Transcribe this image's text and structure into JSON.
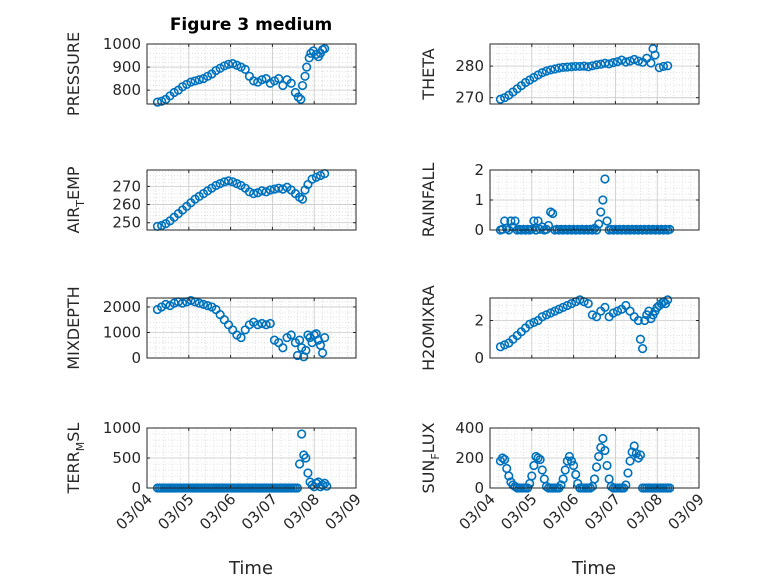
{
  "figure": {
    "title": "Figure 3 medium",
    "xlabel": "Time",
    "marker_color": "#0072bd",
    "x_ticks": [
      "03/04",
      "03/05",
      "03/06",
      "03/07",
      "03/08",
      "03/09"
    ]
  },
  "chart_data": [
    {
      "type": "scatter",
      "ylabel": "PRESSURE",
      "ylim": [
        740,
        1000
      ],
      "yticks": [
        800,
        900,
        1000
      ],
      "xlim": [
        0,
        5
      ],
      "grid": true,
      "series": [
        {
          "x": [
            0.25,
            0.35,
            0.45,
            0.55,
            0.65,
            0.75,
            0.85,
            0.95,
            1.05,
            1.15,
            1.25,
            1.35,
            1.45,
            1.55,
            1.65,
            1.75,
            1.85,
            1.95,
            2.05,
            2.15,
            2.25,
            2.35,
            2.45,
            2.55,
            2.65,
            2.75,
            2.85,
            2.95,
            3.05,
            3.15,
            3.25,
            3.35,
            3.45,
            3.55,
            3.62,
            3.68,
            3.72,
            3.78,
            3.82,
            3.88,
            3.92,
            3.98,
            4.05,
            4.1,
            4.15,
            4.2,
            4.25
          ],
          "y": [
            748,
            752,
            760,
            775,
            790,
            800,
            815,
            825,
            835,
            840,
            845,
            850,
            860,
            870,
            885,
            895,
            905,
            912,
            915,
            908,
            900,
            890,
            860,
            840,
            835,
            845,
            850,
            830,
            840,
            850,
            820,
            845,
            830,
            790,
            770,
            760,
            820,
            860,
            900,
            940,
            960,
            970,
            955,
            945,
            960,
            975,
            980
          ]
        }
      ]
    },
    {
      "type": "scatter",
      "ylabel": "THETA",
      "ylim": [
        268,
        287
      ],
      "yticks": [
        270,
        280
      ],
      "xlim": [
        0,
        5
      ],
      "grid": true,
      "series": [
        {
          "x": [
            0.25,
            0.35,
            0.45,
            0.55,
            0.65,
            0.75,
            0.85,
            0.95,
            1.05,
            1.15,
            1.25,
            1.35,
            1.45,
            1.55,
            1.65,
            1.75,
            1.85,
            1.95,
            2.05,
            2.15,
            2.25,
            2.35,
            2.45,
            2.55,
            2.65,
            2.75,
            2.85,
            2.95,
            3.05,
            3.15,
            3.25,
            3.35,
            3.45,
            3.55,
            3.65,
            3.75,
            3.85,
            3.9,
            3.95,
            4.05,
            4.15,
            4.25
          ],
          "y": [
            269.5,
            270,
            270.8,
            271.8,
            272.8,
            273.8,
            274.8,
            275.6,
            276.4,
            277.2,
            277.9,
            278.4,
            278.8,
            279.1,
            279.4,
            279.6,
            279.7,
            279.8,
            279.9,
            279.9,
            280,
            279.8,
            280.1,
            280.4,
            280.6,
            280.9,
            280.7,
            281.1,
            281.4,
            281.9,
            281.3,
            281.6,
            282.1,
            281.6,
            281.2,
            282.5,
            281,
            285.5,
            283.5,
            279.5,
            279.9,
            280.1
          ]
        }
      ]
    },
    {
      "type": "scatter",
      "ylabel": "AIR_TEMP",
      "ylim": [
        246,
        279
      ],
      "yticks": [
        250,
        260,
        270
      ],
      "xlim": [
        0,
        5
      ],
      "grid": true,
      "series": [
        {
          "x": [
            0.25,
            0.35,
            0.45,
            0.55,
            0.65,
            0.75,
            0.85,
            0.95,
            1.05,
            1.15,
            1.25,
            1.35,
            1.45,
            1.55,
            1.65,
            1.75,
            1.85,
            1.95,
            2.05,
            2.15,
            2.25,
            2.35,
            2.45,
            2.55,
            2.65,
            2.75,
            2.85,
            2.95,
            3.05,
            3.15,
            3.25,
            3.35,
            3.45,
            3.55,
            3.65,
            3.72,
            3.78,
            3.85,
            3.95,
            4.05,
            4.15,
            4.25
          ],
          "y": [
            248,
            248.5,
            249.5,
            251,
            253,
            255,
            257,
            259,
            261,
            263,
            264.5,
            266,
            267.5,
            269,
            270.5,
            271.5,
            272.5,
            273,
            272.5,
            271.5,
            270.5,
            269,
            267,
            266,
            266.5,
            267.5,
            267,
            268,
            268.5,
            269,
            268.5,
            269.5,
            268,
            266,
            264,
            263,
            268,
            271,
            274,
            275,
            276,
            277
          ]
        }
      ]
    },
    {
      "type": "scatter",
      "ylabel": "RAINFALL",
      "ylim": [
        0,
        2
      ],
      "yticks": [
        0,
        1,
        2
      ],
      "xlim": [
        0,
        5
      ],
      "grid": true,
      "series": [
        {
          "x": [
            0.25,
            0.3,
            0.35,
            0.4,
            0.45,
            0.5,
            0.55,
            0.6,
            0.65,
            0.7,
            0.75,
            0.8,
            0.85,
            0.9,
            0.95,
            1.0,
            1.05,
            1.1,
            1.15,
            1.2,
            1.25,
            1.3,
            1.35,
            1.4,
            1.45,
            1.5,
            1.55,
            1.6,
            1.65,
            1.7,
            1.75,
            1.8,
            1.85,
            1.9,
            1.95,
            2.0,
            2.05,
            2.1,
            2.15,
            2.2,
            2.25,
            2.3,
            2.35,
            2.4,
            2.45,
            2.5,
            2.55,
            2.6,
            2.65,
            2.7,
            2.75,
            2.8,
            2.85,
            2.9,
            2.95,
            3.0,
            3.05,
            3.1,
            3.15,
            3.2,
            3.25,
            3.3,
            3.35,
            3.4,
            3.45,
            3.5,
            3.55,
            3.6,
            3.65,
            3.7,
            3.75,
            3.8,
            3.85,
            3.9,
            3.95,
            4.0,
            4.05,
            4.1,
            4.15,
            4.2,
            4.25,
            4.3
          ],
          "y": [
            0,
            0.02,
            0.3,
            0.05,
            0,
            0.3,
            0.1,
            0.3,
            0,
            0.02,
            0,
            0.02,
            0,
            0.02,
            0,
            0.02,
            0.3,
            0,
            0.3,
            0.02,
            0.1,
            0,
            0.02,
            0.15,
            0.6,
            0.55,
            0,
            0.02,
            0,
            0.02,
            0,
            0.02,
            0,
            0.02,
            0,
            0.02,
            0,
            0.02,
            0,
            0.02,
            0,
            0.02,
            0,
            0.02,
            0,
            0.05,
            0,
            0.2,
            0.6,
            1.0,
            1.7,
            0.3,
            0,
            0.02,
            0,
            0.02,
            0,
            0.02,
            0,
            0.02,
            0,
            0.02,
            0,
            0.02,
            0,
            0.02,
            0,
            0.02,
            0,
            0.02,
            0,
            0.02,
            0,
            0.02,
            0,
            0.02,
            0,
            0.02,
            0,
            0.02,
            0,
            0.02
          ]
        }
      ]
    },
    {
      "type": "scatter",
      "ylabel": "MIXDEPTH",
      "ylim": [
        0,
        2350
      ],
      "yticks": [
        0,
        1000,
        2000
      ],
      "xlim": [
        0,
        5
      ],
      "grid": true,
      "series": [
        {
          "x": [
            0.25,
            0.35,
            0.45,
            0.55,
            0.65,
            0.75,
            0.85,
            0.95,
            1.05,
            1.15,
            1.25,
            1.35,
            1.45,
            1.55,
            1.65,
            1.75,
            1.85,
            1.95,
            2.05,
            2.15,
            2.25,
            2.35,
            2.45,
            2.55,
            2.65,
            2.75,
            2.85,
            2.95,
            3.05,
            3.15,
            3.25,
            3.35,
            3.45,
            3.55,
            3.6,
            3.65,
            3.7,
            3.75,
            3.8,
            3.85,
            3.9,
            3.95,
            4.0,
            4.05,
            4.1,
            4.15,
            4.2,
            4.25
          ],
          "y": [
            1900,
            2000,
            2100,
            2050,
            2150,
            2200,
            2150,
            2200,
            2250,
            2200,
            2150,
            2100,
            2050,
            2000,
            1900,
            1700,
            1500,
            1300,
            1100,
            900,
            800,
            1100,
            1300,
            1400,
            1300,
            1350,
            1300,
            1350,
            700,
            600,
            400,
            800,
            900,
            600,
            100,
            700,
            400,
            50,
            300,
            900,
            800,
            600,
            900,
            950,
            700,
            500,
            200,
            800
          ]
        }
      ]
    },
    {
      "type": "scatter",
      "ylabel": "H2OMIXRA",
      "ylim": [
        0,
        3.2
      ],
      "yticks": [
        0,
        2
      ],
      "xlim": [
        0,
        5
      ],
      "grid": true,
      "series": [
        {
          "x": [
            0.25,
            0.35,
            0.45,
            0.55,
            0.65,
            0.75,
            0.85,
            0.95,
            1.05,
            1.15,
            1.25,
            1.35,
            1.45,
            1.55,
            1.65,
            1.75,
            1.85,
            1.95,
            2.05,
            2.15,
            2.25,
            2.35,
            2.45,
            2.55,
            2.65,
            2.75,
            2.85,
            2.95,
            3.05,
            3.15,
            3.25,
            3.35,
            3.45,
            3.55,
            3.6,
            3.65,
            3.7,
            3.75,
            3.8,
            3.85,
            3.9,
            3.95,
            4.0,
            4.05,
            4.1,
            4.15,
            4.2,
            4.25
          ],
          "y": [
            0.6,
            0.7,
            0.8,
            1.0,
            1.2,
            1.4,
            1.6,
            1.8,
            1.9,
            2.0,
            2.2,
            2.3,
            2.4,
            2.5,
            2.6,
            2.7,
            2.8,
            2.9,
            3.0,
            3.1,
            3.0,
            2.9,
            2.3,
            2.2,
            2.5,
            2.7,
            2.2,
            2.4,
            2.5,
            2.6,
            2.8,
            2.5,
            2.2,
            2.0,
            1.0,
            0.5,
            2.0,
            2.3,
            2.5,
            2.1,
            2.3,
            2.5,
            2.7,
            2.8,
            2.9,
            3.0,
            2.9,
            3.1
          ]
        }
      ]
    },
    {
      "type": "scatter",
      "ylabel": "TERR_MSL",
      "ylim": [
        0,
        1000
      ],
      "yticks": [
        0,
        500,
        1000
      ],
      "xlim": [
        0,
        5
      ],
      "grid": true,
      "series": [
        {
          "x": [
            0.25,
            0.3,
            0.35,
            0.4,
            0.45,
            0.5,
            0.55,
            0.6,
            0.65,
            0.7,
            0.75,
            0.8,
            0.85,
            0.9,
            0.95,
            1.0,
            1.05,
            1.1,
            1.15,
            1.2,
            1.25,
            1.3,
            1.35,
            1.4,
            1.45,
            1.5,
            1.55,
            1.6,
            1.65,
            1.7,
            1.75,
            1.8,
            1.85,
            1.9,
            1.95,
            2.0,
            2.05,
            2.1,
            2.15,
            2.2,
            2.25,
            2.3,
            2.35,
            2.4,
            2.45,
            2.5,
            2.55,
            2.6,
            2.65,
            2.7,
            2.75,
            2.8,
            2.85,
            2.9,
            2.95,
            3.0,
            3.05,
            3.1,
            3.15,
            3.2,
            3.25,
            3.3,
            3.35,
            3.4,
            3.45,
            3.5,
            3.55,
            3.6,
            3.65,
            3.7,
            3.75,
            3.8,
            3.85,
            3.9,
            3.95,
            4.0,
            4.05,
            4.1,
            4.15,
            4.2,
            4.25,
            4.3
          ],
          "y": [
            0,
            0,
            0,
            0,
            0,
            0,
            0,
            0,
            0,
            0,
            0,
            0,
            0,
            0,
            0,
            0,
            0,
            0,
            0,
            0,
            0,
            0,
            0,
            0,
            0,
            0,
            0,
            0,
            0,
            0,
            0,
            0,
            0,
            0,
            0,
            0,
            0,
            0,
            0,
            0,
            0,
            0,
            0,
            0,
            0,
            0,
            0,
            0,
            0,
            0,
            0,
            0,
            0,
            0,
            0,
            0,
            0,
            0,
            0,
            0,
            0,
            0,
            0,
            0,
            0,
            0,
            0,
            0,
            400,
            900,
            550,
            500,
            250,
            100,
            50,
            20,
            80,
            100,
            20,
            50,
            80,
            30
          ]
        }
      ]
    },
    {
      "type": "scatter",
      "ylabel": "SUN_FLUX",
      "ylim": [
        0,
        400
      ],
      "yticks": [
        0,
        200,
        400
      ],
      "xlim": [
        0,
        5
      ],
      "grid": true,
      "series": [
        {
          "x": [
            0.25,
            0.3,
            0.35,
            0.4,
            0.45,
            0.5,
            0.55,
            0.6,
            0.65,
            0.7,
            0.75,
            0.8,
            0.85,
            0.9,
            0.95,
            1.0,
            1.05,
            1.1,
            1.15,
            1.2,
            1.25,
            1.3,
            1.35,
            1.4,
            1.45,
            1.5,
            1.55,
            1.6,
            1.65,
            1.7,
            1.75,
            1.8,
            1.85,
            1.9,
            1.95,
            2.0,
            2.05,
            2.1,
            2.15,
            2.2,
            2.25,
            2.3,
            2.35,
            2.4,
            2.45,
            2.5,
            2.55,
            2.6,
            2.65,
            2.7,
            2.75,
            2.8,
            2.85,
            2.9,
            2.95,
            3.0,
            3.05,
            3.1,
            3.15,
            3.2,
            3.25,
            3.3,
            3.35,
            3.4,
            3.45,
            3.5,
            3.55,
            3.6,
            3.65,
            3.7,
            3.75,
            3.8,
            3.85,
            3.9,
            3.95,
            4.0,
            4.05,
            4.1,
            4.15,
            4.2,
            4.25,
            4.3
          ],
          "y": [
            180,
            200,
            190,
            130,
            80,
            40,
            20,
            10,
            0,
            0,
            0,
            0,
            0,
            0,
            30,
            80,
            150,
            210,
            200,
            190,
            120,
            60,
            10,
            0,
            0,
            0,
            0,
            0,
            0,
            20,
            60,
            120,
            180,
            210,
            180,
            150,
            90,
            30,
            0,
            0,
            0,
            0,
            0,
            0,
            10,
            60,
            140,
            210,
            270,
            330,
            250,
            150,
            60,
            10,
            0,
            0,
            0,
            0,
            0,
            0,
            20,
            100,
            180,
            240,
            280,
            230,
            200,
            220,
            0,
            0,
            0,
            0,
            0,
            0,
            0,
            0,
            0,
            0,
            0,
            0,
            0,
            0
          ]
        }
      ]
    }
  ]
}
